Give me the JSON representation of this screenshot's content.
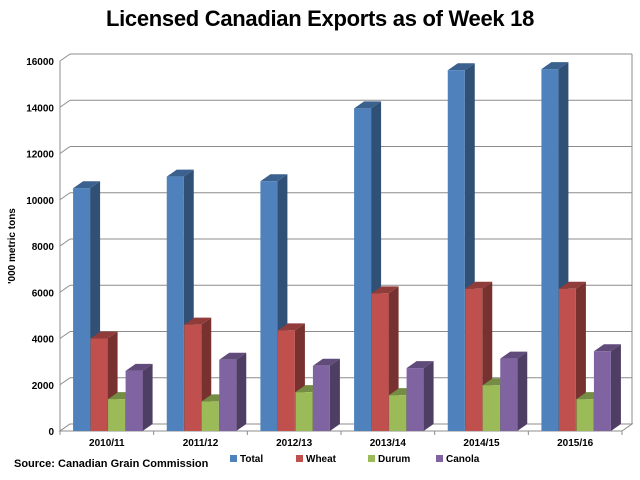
{
  "chart_data": {
    "type": "bar",
    "title": "Licensed Canadian Exports as of Week 18",
    "ylabel": "'000 metric tons",
    "xlabel": "",
    "ylim": [
      0,
      16000
    ],
    "yticks": [
      0,
      2000,
      4000,
      6000,
      8000,
      10000,
      12000,
      14000,
      16000
    ],
    "categories": [
      "2010/11",
      "2011/12",
      "2012/13",
      "2013/14",
      "2014/15",
      "2015/16"
    ],
    "series": [
      {
        "name": "Total",
        "color": "#4f81bd",
        "values": [
          10500,
          11000,
          10800,
          13950,
          15600,
          15650
        ]
      },
      {
        "name": "Wheat",
        "color": "#c0504d",
        "values": [
          4000,
          4600,
          4350,
          5950,
          6150,
          6150
        ]
      },
      {
        "name": "Durum",
        "color": "#9bbb59",
        "values": [
          1380,
          1280,
          1680,
          1550,
          1980,
          1380
        ]
      },
      {
        "name": "Canola",
        "color": "#8064a2",
        "values": [
          2600,
          3080,
          2820,
          2720,
          3130,
          3450
        ]
      }
    ],
    "legend_position": "bottom",
    "grid": true
  },
  "source": "Source: Canadian Grain Commission"
}
